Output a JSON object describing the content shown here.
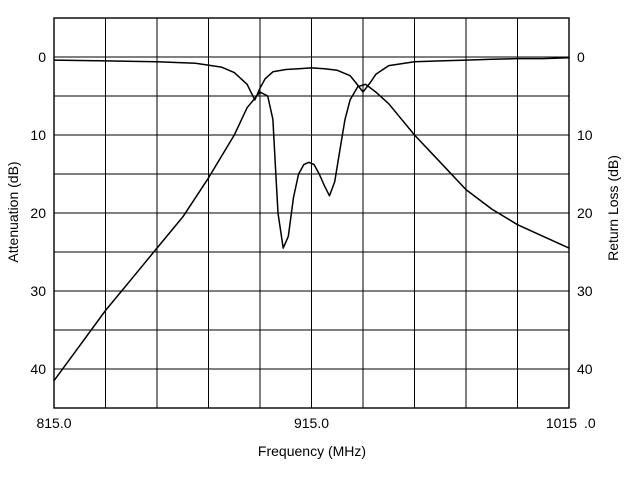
{
  "chart_data": {
    "type": "line",
    "xlabel": "Frequency (MHz)",
    "ylabel_left": "Attenuation (dB)",
    "ylabel_right": "Return Loss (dB)",
    "xlim": [
      815,
      1015
    ],
    "ylim": [
      -5,
      45
    ],
    "x_tick_labels": [
      {
        "x": 815,
        "label": "815.0"
      },
      {
        "x": 915,
        "label": "915.0"
      },
      {
        "x": 1015,
        "label": "1015"
      }
    ],
    "x_tick_suffix": ".0",
    "y_ticks": [
      0,
      10,
      20,
      30,
      40
    ],
    "y_tick_labels_left": [
      "0",
      "10",
      "20",
      "30",
      "40"
    ],
    "y_tick_labels_right": [
      "0",
      "10",
      "20",
      "30",
      "40"
    ],
    "grid": true,
    "gridlines_x": [
      815,
      835,
      855,
      875,
      895,
      915,
      935,
      955,
      975,
      995,
      1015
    ],
    "gridlines_y": [
      -5,
      0,
      5,
      10,
      15,
      20,
      25,
      30,
      35,
      40,
      45
    ],
    "series": [
      {
        "name": "Attenuation",
        "x": [
          815,
          835,
          855,
          870,
          880,
          885,
          890,
          893,
          895,
          897,
          900,
          905,
          910,
          915,
          920,
          925,
          930,
          932,
          935,
          938,
          940,
          945,
          955,
          965,
          975,
          985,
          995,
          1005,
          1015
        ],
        "y": [
          0.4,
          0.5,
          0.6,
          0.8,
          1.3,
          2.0,
          3.5,
          5.5,
          4.0,
          2.8,
          1.9,
          1.6,
          1.5,
          1.4,
          1.5,
          1.7,
          2.4,
          3.2,
          4.5,
          3.2,
          2.2,
          1.1,
          0.6,
          0.5,
          0.4,
          0.3,
          0.2,
          0.2,
          0.1
        ]
      },
      {
        "name": "Return Loss",
        "x": [
          815,
          825,
          835,
          845,
          855,
          865,
          875,
          885,
          890,
          895,
          898,
          900,
          901,
          902,
          904,
          906,
          908,
          910,
          912,
          914,
          916,
          918,
          920,
          922,
          924,
          926,
          928,
          930,
          933,
          936,
          940,
          945,
          955,
          965,
          975,
          985,
          995,
          1005,
          1015
        ],
        "y": [
          41.5,
          37.0,
          32.5,
          28.5,
          24.5,
          20.5,
          15.5,
          10.0,
          6.5,
          4.5,
          5.0,
          8.0,
          14.0,
          20.0,
          24.5,
          23.0,
          18.0,
          15.0,
          13.8,
          13.5,
          13.8,
          15.0,
          16.5,
          17.8,
          16.0,
          12.0,
          8.0,
          5.5,
          3.8,
          3.5,
          4.5,
          6.0,
          10.0,
          13.5,
          17.0,
          19.5,
          21.5,
          23.0,
          24.5
        ]
      }
    ]
  }
}
